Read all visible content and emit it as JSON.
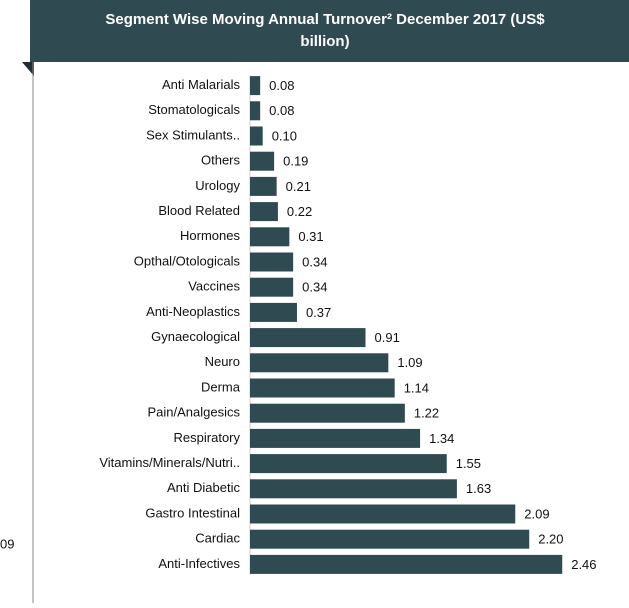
{
  "chart_data": {
    "type": "bar",
    "orientation": "horizontal",
    "title_lines": [
      "Segment Wise Moving Annual Turnover² December 2017 (US$",
      "billion)"
    ],
    "annotation": "09",
    "categories": [
      "Anti Malarials",
      "Stomatologicals",
      "Sex Stimulants..",
      "Others",
      "Urology",
      "Blood Related",
      "Hormones",
      "Opthal/Otologicals",
      "Vaccines",
      "Anti-Neoplastics",
      "Gynaecological",
      "Neuro",
      "Derma",
      "Pain/Analgesics",
      "Respiratory",
      "Vitamins/Minerals/Nutri..",
      "Anti Diabetic",
      "Gastro Intestinal",
      "Cardiac",
      "Anti-Infectives"
    ],
    "values": [
      0.08,
      0.08,
      0.1,
      0.19,
      0.21,
      0.22,
      0.31,
      0.34,
      0.34,
      0.37,
      0.91,
      1.09,
      1.14,
      1.22,
      1.34,
      1.55,
      1.63,
      2.09,
      2.2,
      2.46
    ],
    "value_labels": [
      "0.08",
      "0.08",
      "0.10",
      "0.19",
      "0.21",
      "0.22",
      "0.31",
      "0.34",
      "0.34",
      "0.37",
      "0.91",
      "1.09",
      "1.14",
      "1.22",
      "1.34",
      "1.55",
      "1.63",
      "2.09",
      "2.20",
      "2.46"
    ],
    "color": "#2f4a50",
    "xlim": [
      0,
      2.6
    ]
  }
}
